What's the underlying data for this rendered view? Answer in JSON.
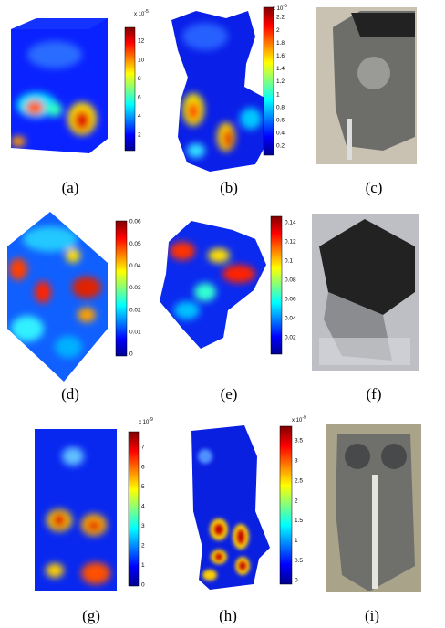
{
  "panels": [
    {
      "caption": "(a)",
      "colorbar": {
        "exponent": {
          "base": "x 10",
          "power": "-5"
        },
        "ticks": [
          "2",
          "4",
          "6",
          "8",
          "10",
          "12"
        ]
      }
    },
    {
      "caption": "(b)",
      "colorbar": {
        "exponent": {
          "base": "x 10",
          "power": "-5"
        },
        "ticks": [
          "0.2",
          "0.4",
          "0.6",
          "0.8",
          "1",
          "1.2",
          "1.4",
          "1.6",
          "1.8",
          "2",
          "2.2"
        ]
      }
    },
    {
      "caption": "(c)"
    },
    {
      "caption": "(d)",
      "colorbar": {
        "ticks": [
          "0",
          "0.01",
          "0.02",
          "0.03",
          "0.04",
          "0.05",
          "0.06"
        ]
      }
    },
    {
      "caption": "(e)",
      "colorbar": {
        "ticks": [
          "0.02",
          "0.04",
          "0.06",
          "0.08",
          "0.1",
          "0.12",
          "0.14"
        ]
      }
    },
    {
      "caption": "(f)"
    },
    {
      "caption": "(g)",
      "colorbar": {
        "exponent": {
          "base": "x 10",
          "power": "-9"
        },
        "ticks": [
          "0",
          "1",
          "2",
          "3",
          "4",
          "5",
          "6",
          "7"
        ]
      }
    },
    {
      "caption": "(h)",
      "colorbar": {
        "exponent": {
          "base": "x 10",
          "power": "-9"
        },
        "ticks": [
          "0",
          "0.5",
          "1",
          "1.5",
          "2",
          "2.5",
          "3",
          "3.5"
        ]
      }
    },
    {
      "caption": "(i)"
    }
  ]
}
